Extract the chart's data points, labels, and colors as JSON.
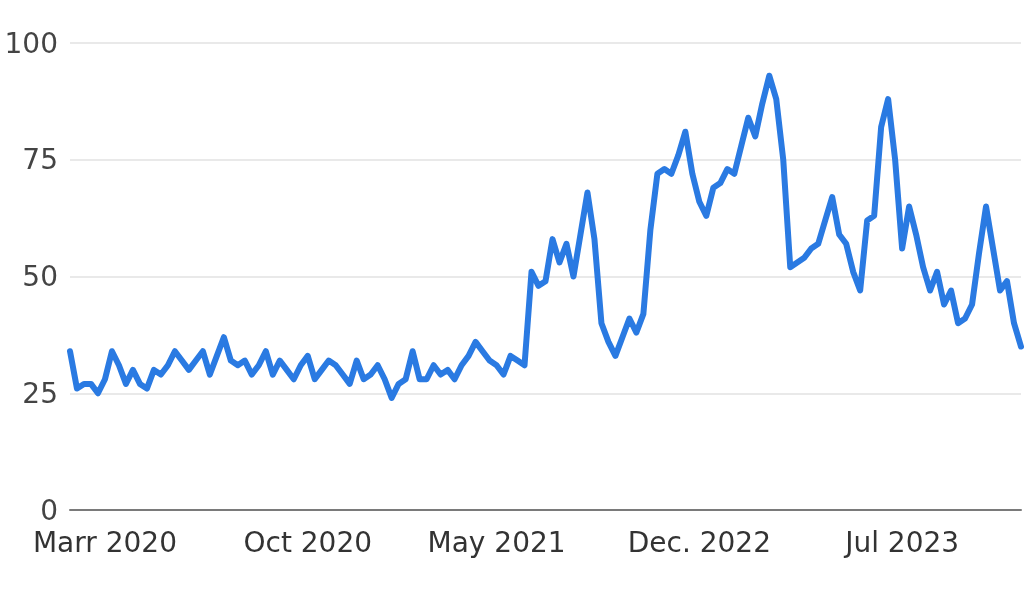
{
  "chart_data": {
    "type": "line",
    "categories": [
      null,
      null,
      null,
      null,
      null,
      "Marr 2020",
      null,
      null,
      null,
      null,
      null,
      null,
      null,
      null,
      null,
      null,
      null,
      null,
      null,
      null,
      null,
      null,
      null,
      null,
      null,
      null,
      null,
      null,
      null,
      null,
      null,
      null,
      null,
      null,
      "Oct 2020",
      null,
      null,
      null,
      null,
      null,
      null,
      null,
      null,
      null,
      null,
      null,
      null,
      null,
      null,
      null,
      null,
      null,
      null,
      null,
      null,
      null,
      null,
      null,
      null,
      null,
      null,
      "May 2021",
      null,
      null,
      null,
      null,
      null,
      null,
      null,
      null,
      null,
      null,
      null,
      null,
      null,
      null,
      null,
      null,
      null,
      null,
      null,
      null,
      null,
      null,
      null,
      null,
      null,
      null,
      null,
      null,
      "Dec. 2022",
      null,
      null,
      null,
      null,
      null,
      null,
      null,
      null,
      null,
      null,
      null,
      null,
      null,
      null,
      null,
      null,
      null,
      null,
      null,
      null,
      null,
      null,
      null,
      null,
      null,
      null,
      null,
      null,
      "Jul 2023",
      null,
      null,
      null,
      null,
      null,
      null,
      null,
      null,
      null,
      null,
      null,
      null,
      null,
      null,
      null,
      null,
      null
    ],
    "values": [
      34,
      26,
      27,
      27,
      25,
      28,
      34,
      31,
      27,
      30,
      27,
      26,
      30,
      29,
      31,
      34,
      32,
      30,
      32,
      34,
      29,
      33,
      37,
      32,
      31,
      32,
      29,
      31,
      34,
      29,
      32,
      30,
      28,
      31,
      33,
      28,
      30,
      32,
      31,
      29,
      27,
      32,
      28,
      29,
      31,
      28,
      24,
      27,
      28,
      34,
      28,
      28,
      31,
      29,
      30,
      28,
      31,
      33,
      36,
      34,
      32,
      31,
      29,
      33,
      32,
      31,
      51,
      48,
      49,
      58,
      53,
      57,
      50,
      59,
      68,
      58,
      40,
      36,
      33,
      37,
      41,
      38,
      42,
      60,
      72,
      73,
      72,
      76,
      81,
      72,
      66,
      63,
      69,
      70,
      73,
      72,
      78,
      84,
      80,
      87,
      93,
      88,
      75,
      52,
      53,
      54,
      56,
      57,
      62,
      67,
      59,
      57,
      51,
      47,
      62,
      63,
      82,
      88,
      75,
      56,
      65,
      59,
      52,
      47,
      51,
      44,
      47,
      40,
      41,
      44,
      55,
      65,
      56,
      47,
      49,
      40,
      35
    ],
    "color": "#2a7ae2",
    "ylim": [
      0,
      100
    ],
    "yticks": [
      0,
      25,
      50,
      75,
      100
    ],
    "grid": "y",
    "marker": "none",
    "line_style": "solid"
  }
}
